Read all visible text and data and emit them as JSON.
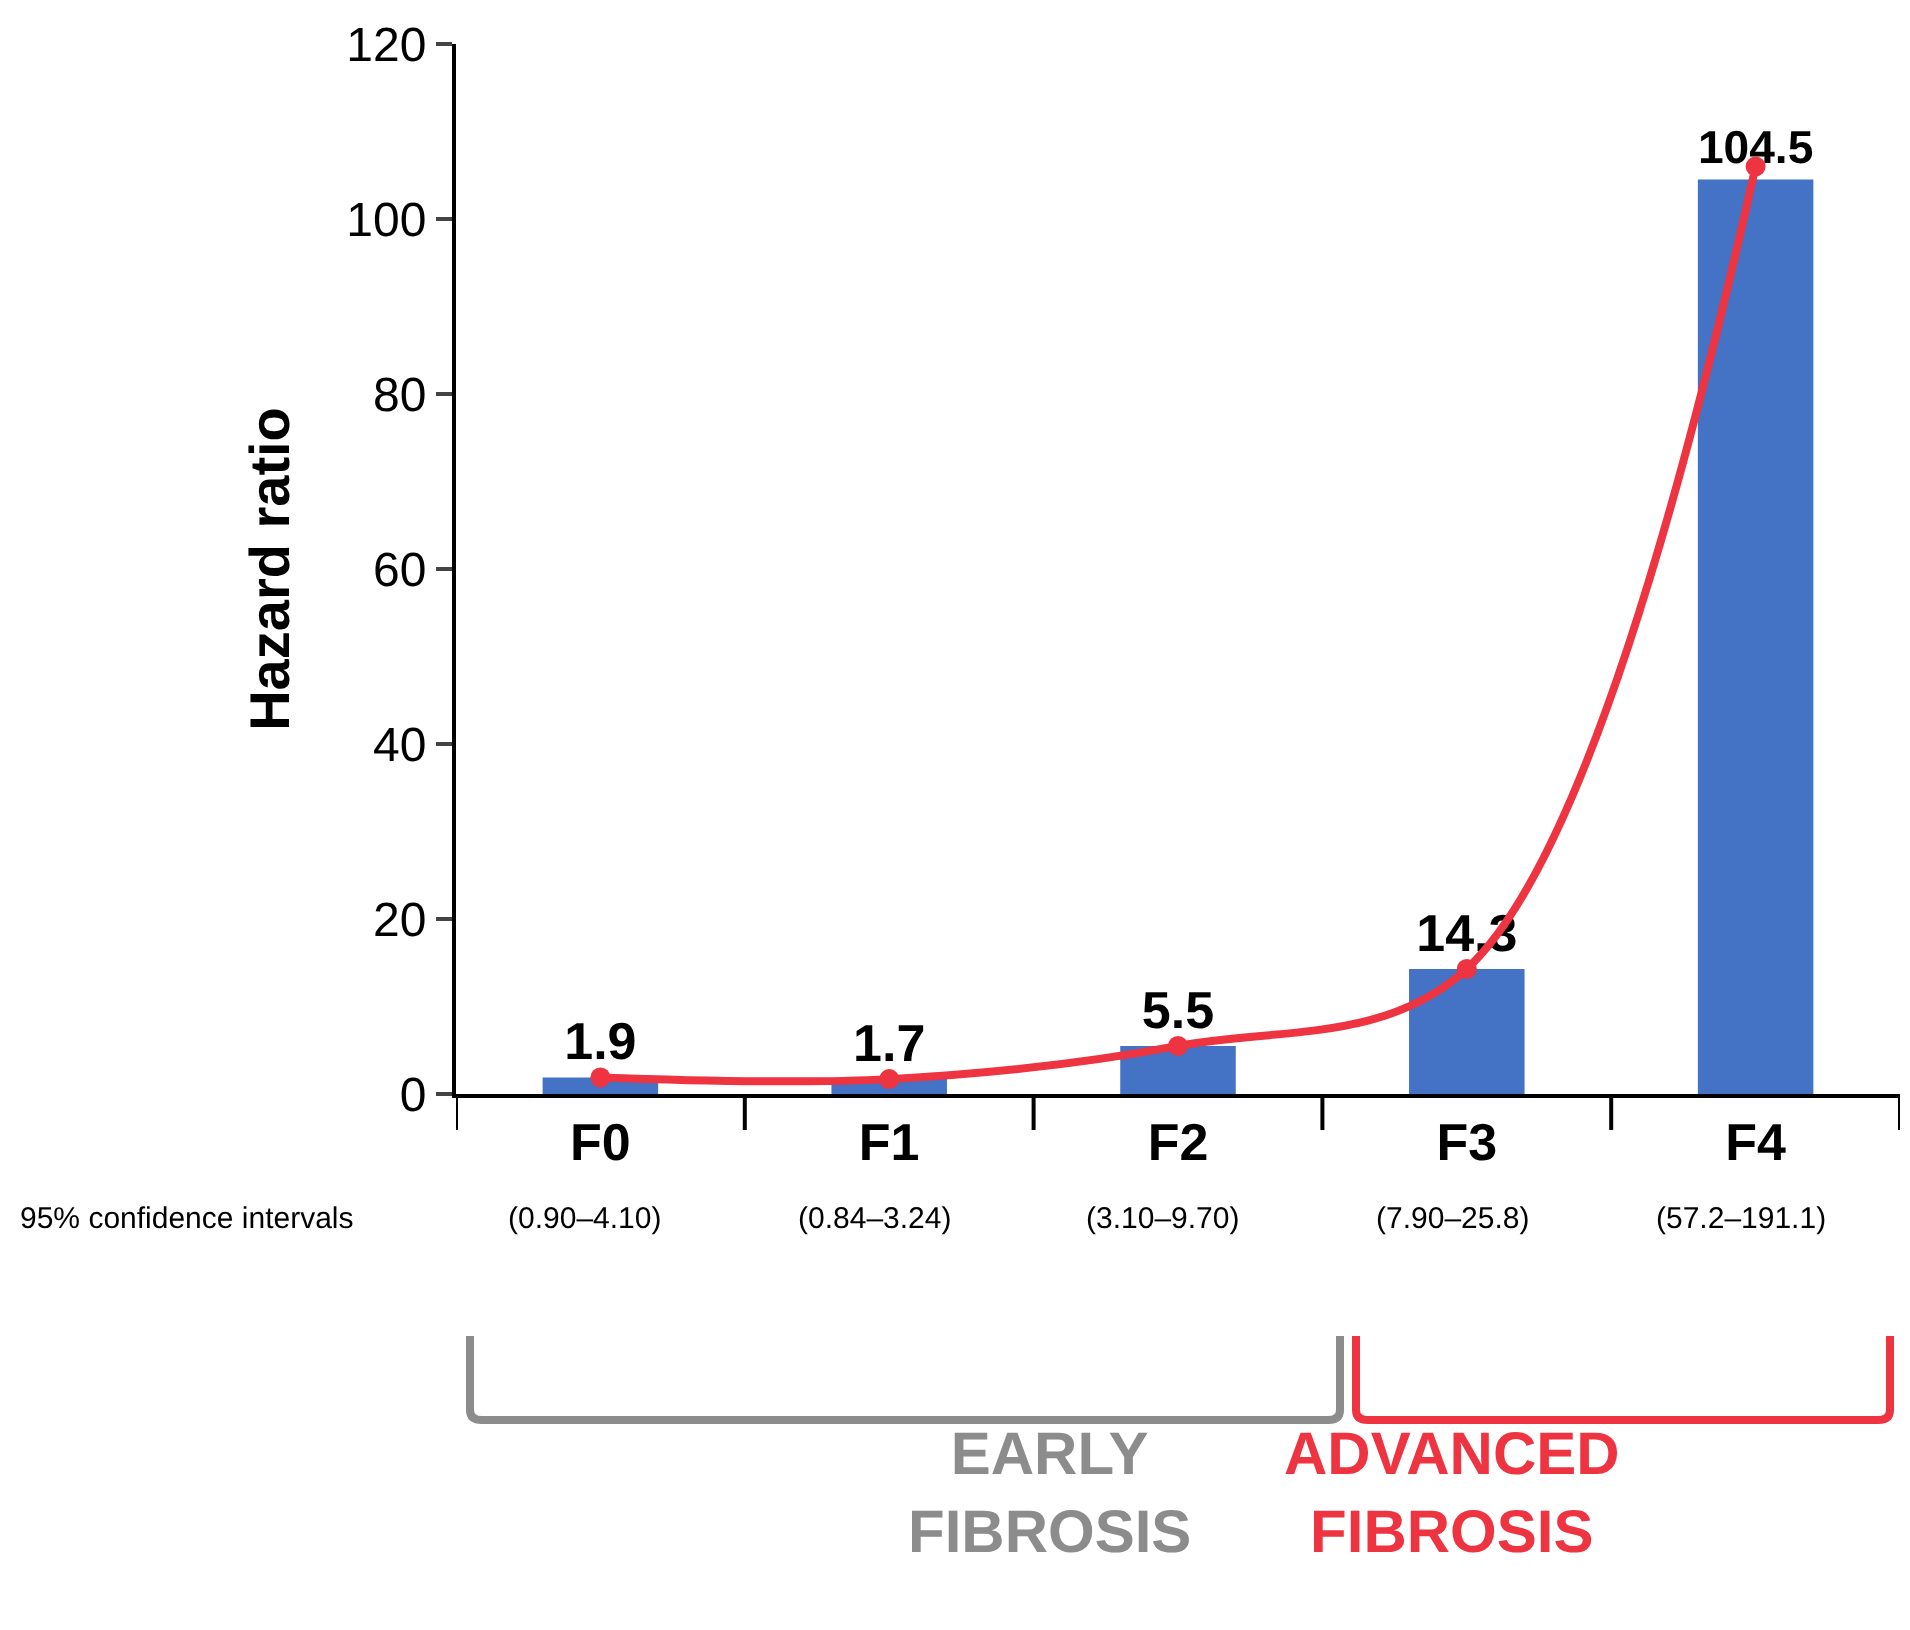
{
  "chart_data": {
    "type": "bar",
    "ylabel": "Hazard ratio",
    "categories": [
      "F0",
      "F1",
      "F2",
      "F3",
      "F4"
    ],
    "series": [
      {
        "color": "#4472c4",
        "values": [
          1.9,
          1.7,
          5.5,
          14.3,
          104.5
        ],
        "value_labels": [
          "1.9",
          "1.7",
          "5.5",
          "14.3",
          "104.5"
        ]
      },
      {
        "type": "line",
        "color": "#ee3341",
        "values": [
          1.9,
          1.7,
          5.5,
          14.3,
          106
        ],
        "marker": "circle",
        "line_style": "solid"
      }
    ],
    "ylim": [
      0,
      120
    ],
    "yticks": [
      0,
      20,
      40,
      60,
      80,
      100,
      120
    ],
    "grid": false,
    "legend": false,
    "annotations": [
      "95% confidence intervals",
      "(0.90–4.10)",
      "(0.84–3.24)",
      "(3.10–9.70)",
      "(7.90–25.8)",
      "(57.2–191.1)",
      "EARLY\nFIBROSIS",
      "ADVANCED\nFIBROSIS"
    ]
  }
}
